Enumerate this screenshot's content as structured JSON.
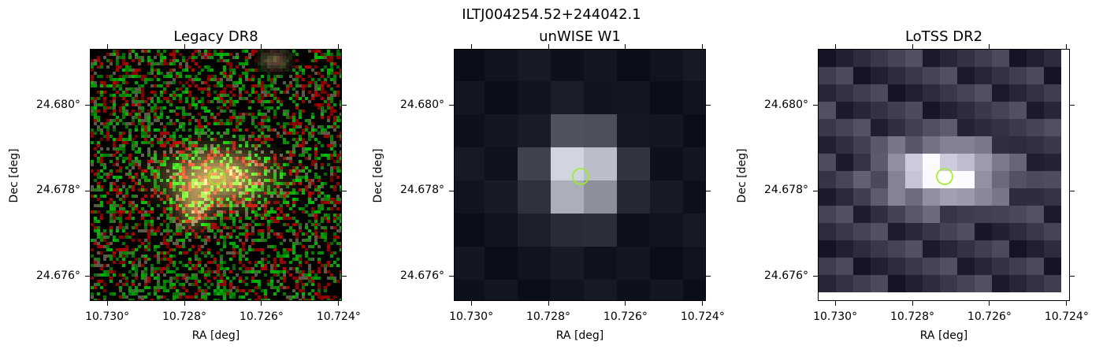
{
  "figure": {
    "title": "ILTJ004254.52+244042.1"
  },
  "panels": [
    {
      "id": "legacy",
      "title": "Legacy DR8",
      "xlabel": "RA [deg]",
      "ylabel": "Dec [deg]",
      "xticks": [
        "10.730°",
        "10.728°",
        "10.726°",
        "10.724°"
      ],
      "yticks": [
        "24.680°",
        "24.678°",
        "24.676°"
      ],
      "marker_color": "#9cf01a"
    },
    {
      "id": "unwise",
      "title": "unWISE W1",
      "xlabel": "RA [deg]",
      "ylabel": "Dec [deg]",
      "xticks": [
        "10.730°",
        "10.728°",
        "10.726°",
        "10.724°"
      ],
      "yticks": [
        "24.680°",
        "24.678°",
        "24.676°"
      ],
      "marker_color": "#9cf01a"
    },
    {
      "id": "lotss",
      "title": "LoTSS DR2",
      "xlabel": "RA [deg]",
      "ylabel": "Dec [deg]",
      "xticks": [
        "10.730°",
        "10.728°",
        "10.726°",
        "10.724°"
      ],
      "yticks": [
        "24.680°",
        "24.678°",
        "24.676°"
      ],
      "marker_color": "#9cf01a"
    }
  ]
}
